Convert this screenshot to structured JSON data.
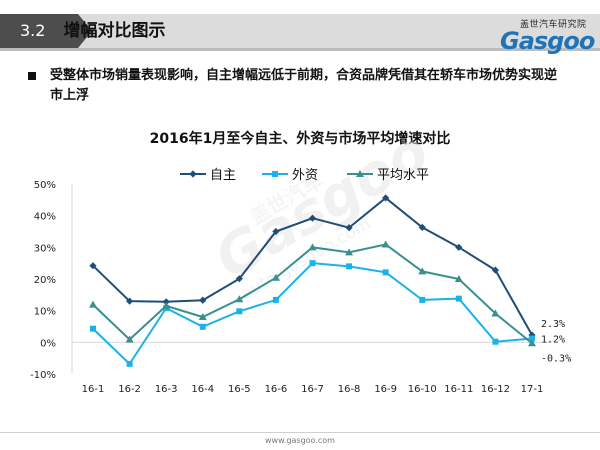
{
  "header": {
    "section_number": "3.2",
    "section_title": "增幅对比图示",
    "logo_cn": "盖世汽车研究院",
    "logo_en": "Gasgoo"
  },
  "note": {
    "text": "受整体市场销量表现影响，自主增幅远低于前期，合资品牌凭借其在轿车市场优势实现逆市上浮"
  },
  "watermark": {
    "cn": "盖世汽车",
    "en": "Gasgoo",
    "url": "auto.gasgoo.com"
  },
  "footer": {
    "url": "www.gasgoo.com"
  },
  "colors": {
    "zizhu": "#1f4e79",
    "waizi": "#1ab2e8",
    "pingjun": "#3a8f8f",
    "grid_axis": "#d9d9d9",
    "header_band": "#4d4d4d"
  },
  "chart_data": {
    "type": "line",
    "title": "2016年1月至今自主、外资与市场平均增速对比",
    "xlabel": "",
    "ylabel": "",
    "categories": [
      "16-1",
      "16-2",
      "16-3",
      "16-4",
      "16-5",
      "16-6",
      "16-7",
      "16-8",
      "16-9",
      "16-10",
      "16-11",
      "16-12",
      "17-1"
    ],
    "ylim": [
      -10,
      50
    ],
    "yticks": [
      "-10%",
      "0%",
      "10%",
      "20%",
      "30%",
      "40%",
      "50%"
    ],
    "legend_position": "top",
    "grid": false,
    "series": [
      {
        "name": "自主",
        "marker": "diamond",
        "values": [
          24.2,
          13,
          12.8,
          13.3,
          20.1,
          35,
          39.2,
          36.2,
          45.6,
          36.3,
          30,
          22.8,
          2.3
        ]
      },
      {
        "name": "外资",
        "marker": "square",
        "values": [
          4.3,
          -6.8,
          10.8,
          4.9,
          9.8,
          13.4,
          25,
          24,
          22.1,
          13.4,
          13.8,
          0.2,
          1.2
        ]
      },
      {
        "name": "平均水平",
        "marker": "triangle",
        "values": [
          11.9,
          0.9,
          11.5,
          8,
          13.6,
          20.4,
          30,
          28.4,
          30.9,
          22.4,
          20,
          9.1,
          -0.3
        ]
      }
    ],
    "annotations": [
      {
        "series": "自主",
        "label": "2.3%"
      },
      {
        "series": "外资",
        "label": "1.2%"
      },
      {
        "series": "平均水平",
        "label": "-0.3%"
      }
    ]
  }
}
